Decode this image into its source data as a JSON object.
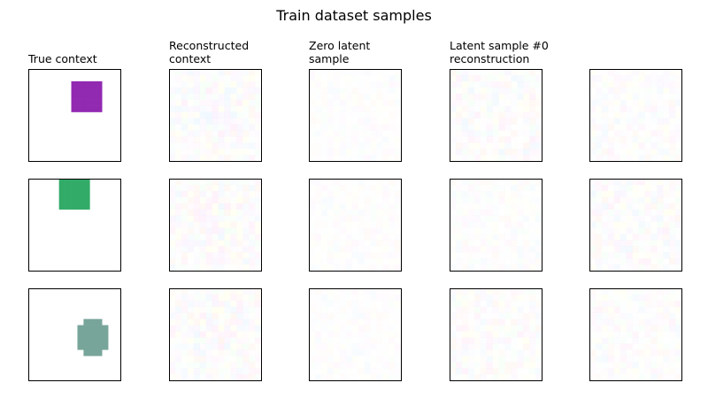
{
  "chart_data": {
    "type": "heatmap",
    "title": "Train dataset samples",
    "column_titles": [
      [
        "True context"
      ],
      [
        "Reconstructed",
        "context"
      ],
      [
        "Zero latent",
        "sample"
      ],
      [
        "Latent sample #0",
        "reconstruction"
      ],
      [
        ""
      ]
    ],
    "grid_cells": 15,
    "rows": [
      {
        "context_color": "#9229b1",
        "context_shape": {
          "center": [
            9.0,
            4.0
          ],
          "radius": 2.9
        },
        "noise_levels": [
          0.1,
          0.06,
          0.11,
          0.09
        ]
      },
      {
        "context_color": "#32ab68",
        "context_shape": {
          "center": [
            7.0,
            2.0
          ],
          "radius": 2.9
        },
        "noise_levels": [
          0.1,
          0.06,
          0.07,
          0.11
        ]
      },
      {
        "context_color": "#78a59a",
        "context_shape": {
          "center": [
            10.0,
            7.5
          ],
          "radius": 2.9
        },
        "noise_levels": [
          0.1,
          0.06,
          0.1,
          0.09
        ]
      }
    ],
    "axes": {
      "ticks": false,
      "grid": false
    }
  }
}
